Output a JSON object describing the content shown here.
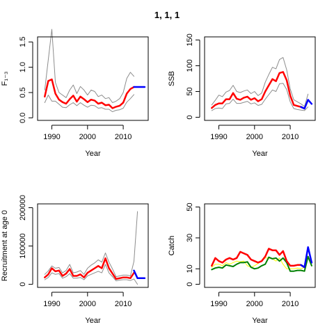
{
  "figure_title": "1, 1, 1",
  "chart_data": [
    {
      "type": "line",
      "ylabel": "F₁₋₃",
      "xlabel": "Year",
      "xlim": [
        1986,
        2017
      ],
      "ylim": [
        -0.05,
        1.6
      ],
      "xticks": [
        1990,
        2000,
        2010
      ],
      "yticks": [
        0.0,
        0.5,
        1.0,
        1.5
      ],
      "ytick_labels": [
        "0.0",
        "0.5",
        "1.0",
        "1.5"
      ],
      "series": [
        {
          "x": [
            1988,
            1989,
            1990,
            1991,
            1992,
            1993,
            1994,
            1995,
            1996,
            1997,
            1998,
            1999,
            2000,
            2001,
            2002,
            2003,
            2004,
            2005,
            2006,
            2007,
            2008,
            2009,
            2010,
            2011,
            2012,
            2013
          ],
          "values": [
            0.42,
            0.73,
            0.76,
            0.48,
            0.36,
            0.31,
            0.28,
            0.37,
            0.44,
            0.32,
            0.42,
            0.37,
            0.31,
            0.36,
            0.34,
            0.28,
            0.3,
            0.25,
            0.26,
            0.19,
            0.22,
            0.24,
            0.3,
            0.48,
            0.57,
            0.61
          ],
          "color": "#ff0000",
          "width": 2.5
        },
        {
          "x": [
            1988,
            1989,
            1990,
            1991,
            1992,
            1993,
            1994,
            1995,
            1996,
            1997,
            1998,
            1999,
            2000,
            2001,
            2002,
            2003,
            2004,
            2005,
            2006,
            2007,
            2008,
            2009,
            2010,
            2011,
            2012,
            2013
          ],
          "values": [
            0.55,
            1.15,
            1.75,
            0.7,
            0.5,
            0.45,
            0.4,
            0.55,
            0.65,
            0.48,
            0.62,
            0.55,
            0.45,
            0.55,
            0.52,
            0.42,
            0.45,
            0.38,
            0.4,
            0.3,
            0.33,
            0.38,
            0.5,
            0.78,
            0.9,
            0.82
          ],
          "color": "#8c8c8c",
          "width": 1
        },
        {
          "x": [
            1988,
            1989,
            1990,
            1991,
            1992,
            1993,
            1994,
            1995,
            1996,
            1997,
            1998,
            1999,
            2000,
            2001,
            2002,
            2003,
            2004,
            2005,
            2006,
            2007,
            2008,
            2009,
            2010,
            2011,
            2012,
            2013
          ],
          "values": [
            0.3,
            0.45,
            0.33,
            0.33,
            0.27,
            0.21,
            0.2,
            0.26,
            0.3,
            0.24,
            0.3,
            0.25,
            0.21,
            0.25,
            0.24,
            0.19,
            0.2,
            0.17,
            0.17,
            0.12,
            0.15,
            0.16,
            0.19,
            0.31,
            0.38,
            0.46
          ],
          "color": "#8c8c8c",
          "width": 1
        },
        {
          "x": [
            2013,
            2014,
            2015,
            2016
          ],
          "values": [
            0.61,
            0.61,
            0.61,
            0.61
          ],
          "color": "#0000ff",
          "width": 2.5
        }
      ]
    },
    {
      "type": "line",
      "ylabel": "SSB",
      "xlabel": "Year",
      "xlim": [
        1986,
        2017
      ],
      "ylim": [
        -6,
        156
      ],
      "xticks": [
        1990,
        2000,
        2010
      ],
      "yticks": [
        0,
        50,
        100,
        150
      ],
      "ytick_labels": [
        "0",
        "50",
        "100",
        "150"
      ],
      "series": [
        {
          "x": [
            1988,
            1989,
            1990,
            1991,
            1992,
            1993,
            1994,
            1995,
            1996,
            1997,
            1998,
            1999,
            2000,
            2001,
            2002,
            2003,
            2004,
            2005,
            2006,
            2007,
            2008,
            2009,
            2010,
            2011,
            2012,
            2013,
            2014
          ],
          "values": [
            18,
            24,
            27,
            27,
            35,
            35,
            47,
            36,
            34,
            38,
            40,
            34,
            37,
            31,
            35,
            50,
            62,
            74,
            70,
            86,
            88,
            72,
            42,
            24,
            22,
            20,
            17
          ],
          "color": "#ff0000",
          "width": 2.5
        },
        {
          "x": [
            1988,
            1989,
            1990,
            1991,
            1992,
            1993,
            1994,
            1995,
            1996,
            1997,
            1998,
            1999,
            2000,
            2001,
            2002,
            2003,
            2004,
            2005,
            2006,
            2007,
            2008,
            2009,
            2010,
            2011,
            2012,
            2013,
            2014,
            2015
          ],
          "values": [
            24,
            33,
            43,
            40,
            49,
            52,
            62,
            50,
            48,
            51,
            53,
            46,
            50,
            42,
            47,
            68,
            83,
            97,
            94,
            112,
            116,
            92,
            55,
            34,
            30,
            26,
            21,
            45
          ],
          "color": "#8c8c8c",
          "width": 1
        },
        {
          "x": [
            1988,
            1989,
            1990,
            1991,
            1992,
            1993,
            1994,
            1995,
            1996,
            1997,
            1998,
            1999,
            2000,
            2001,
            2002,
            2003,
            2004,
            2005,
            2006,
            2007,
            2008,
            2009,
            2010,
            2011,
            2012,
            2013,
            2014,
            2015
          ],
          "values": [
            13,
            17,
            18,
            17,
            26,
            27,
            35,
            27,
            27,
            29,
            31,
            26,
            28,
            23,
            25,
            35,
            44,
            53,
            50,
            65,
            66,
            54,
            30,
            17,
            15,
            14,
            13,
            20
          ],
          "color": "#8c8c8c",
          "width": 1
        },
        {
          "x": [
            2013,
            2014,
            2015,
            2016
          ],
          "values": [
            20,
            17,
            34,
            26
          ],
          "color": "#0000ff",
          "width": 2.5
        }
      ]
    },
    {
      "type": "line",
      "ylabel": "Recruitment at age 0",
      "xlabel": "Year",
      "xlim": [
        1986,
        2017
      ],
      "ylim": [
        -8000,
        210000
      ],
      "xticks": [
        1990,
        2000,
        2010
      ],
      "yticks": [
        0,
        100000,
        200000
      ],
      "ytick_labels": [
        "0",
        "100000",
        "200000"
      ],
      "series": [
        {
          "x": [
            1988,
            1989,
            1990,
            1991,
            1992,
            1993,
            1994,
            1995,
            1996,
            1997,
            1998,
            1999,
            2000,
            2001,
            2002,
            2003,
            2004,
            2005,
            2006,
            2007,
            2008,
            2009,
            2010,
            2011,
            2012,
            2013
          ],
          "values": [
            18000,
            26000,
            42000,
            34000,
            36000,
            22000,
            28000,
            40000,
            22000,
            22000,
            26000,
            18000,
            30000,
            36000,
            42000,
            48000,
            42000,
            68000,
            42000,
            28000,
            14000,
            16000,
            18000,
            18000,
            16000,
            30000
          ],
          "color": "#ff0000",
          "width": 2.5
        },
        {
          "x": [
            1988,
            1989,
            1990,
            1991,
            1992,
            1993,
            1994,
            1995,
            1996,
            1997,
            1998,
            1999,
            2000,
            2001,
            2002,
            2003,
            2004,
            2005,
            2006,
            2007,
            2008,
            2009,
            2010,
            2011,
            2012,
            2013,
            2014
          ],
          "values": [
            26000,
            35000,
            48000,
            42000,
            44000,
            30000,
            36000,
            52000,
            30000,
            32000,
            36000,
            26000,
            42000,
            50000,
            56000,
            64000,
            58000,
            82000,
            58000,
            40000,
            20000,
            22000,
            24000,
            24000,
            22000,
            60000,
            190000
          ],
          "color": "#8c8c8c",
          "width": 1
        },
        {
          "x": [
            1988,
            1989,
            1990,
            1991,
            1992,
            1993,
            1994,
            1995,
            1996,
            1997,
            1998,
            1999,
            2000,
            2001,
            2002,
            2003,
            2004,
            2005,
            2006,
            2007,
            2008,
            2009,
            2010,
            2011,
            2012,
            2013,
            2014
          ],
          "values": [
            12000,
            18000,
            30000,
            26000,
            28000,
            16000,
            20000,
            28000,
            16000,
            16000,
            18000,
            12000,
            22000,
            26000,
            30000,
            34000,
            30000,
            52000,
            30000,
            20000,
            9000,
            11000,
            12000,
            12000,
            10000,
            14000,
            0
          ],
          "color": "#8c8c8c",
          "width": 1
        },
        {
          "x": [
            2013,
            2014,
            2015,
            2016
          ],
          "values": [
            36000,
            16000,
            16000,
            16000
          ],
          "color": "#0000ff",
          "width": 2.5
        }
      ]
    },
    {
      "type": "line",
      "ylabel": "Catch",
      "xlabel": "Year",
      "xlim": [
        1986,
        2017
      ],
      "ylim": [
        -2,
        52
      ],
      "xticks": [
        1990,
        2000,
        2010
      ],
      "yticks": [
        0,
        10,
        30,
        50
      ],
      "ytick_labels": [
        "0",
        "10",
        "30",
        "50"
      ],
      "series": [
        {
          "x": [
            1988,
            1989,
            1990,
            1991,
            1992,
            1993,
            1994,
            1995,
            1996,
            1997,
            1998,
            1999,
            2000,
            2001,
            2002,
            2003,
            2004,
            2005,
            2006,
            2007,
            2008,
            2009,
            2010,
            2011,
            2012,
            2013,
            2014
          ],
          "values": [
            11,
            13,
            13,
            12,
            14,
            13,
            14,
            15,
            14.5,
            15,
            12,
            11,
            12,
            13.5,
            15,
            17,
            17,
            16.5,
            15,
            17,
            13,
            10,
            10,
            10,
            10.5,
            10,
            11
          ],
          "color": "#ffff00",
          "width": 1
        },
        {
          "x": [
            1988,
            1989,
            1990,
            1991,
            1992,
            1993,
            1994,
            1995,
            1996,
            1997,
            1998,
            1999,
            2000,
            2001,
            2002,
            2003,
            2004,
            2005,
            2006,
            2007,
            2008,
            2009,
            2010,
            2011,
            2012,
            2013,
            2014,
            2015,
            2016
          ],
          "values": [
            9.5,
            10.5,
            11,
            10.5,
            12.5,
            12,
            11.5,
            13,
            14,
            14,
            14.5,
            11,
            10,
            10.5,
            12,
            13,
            17.5,
            16.5,
            17,
            15,
            17,
            14,
            8.5,
            8.5,
            9,
            9,
            8.5,
            18,
            12
          ],
          "color": "#008000",
          "width": 2
        },
        {
          "x": [
            1988,
            1989,
            1990,
            1991,
            1992,
            1993,
            1994,
            1995,
            1996,
            1997,
            1998,
            1999,
            2000,
            2001,
            2002,
            2003,
            2004,
            2005,
            2006,
            2007,
            2008,
            2009,
            2010,
            2011,
            2012,
            2013,
            2014
          ],
          "values": [
            12,
            17,
            15,
            14,
            16,
            17,
            16,
            17,
            21,
            20,
            19,
            16,
            15,
            14,
            15,
            18,
            23,
            22,
            22,
            19,
            21.5,
            15,
            12,
            12,
            12.5,
            12.5,
            11
          ],
          "color": "#ff0000",
          "width": 2.5
        },
        {
          "x": [
            2013,
            2014,
            2015,
            2016
          ],
          "values": [
            12.5,
            11,
            24,
            14
          ],
          "color": "#0000ff",
          "width": 2.5
        }
      ]
    }
  ]
}
